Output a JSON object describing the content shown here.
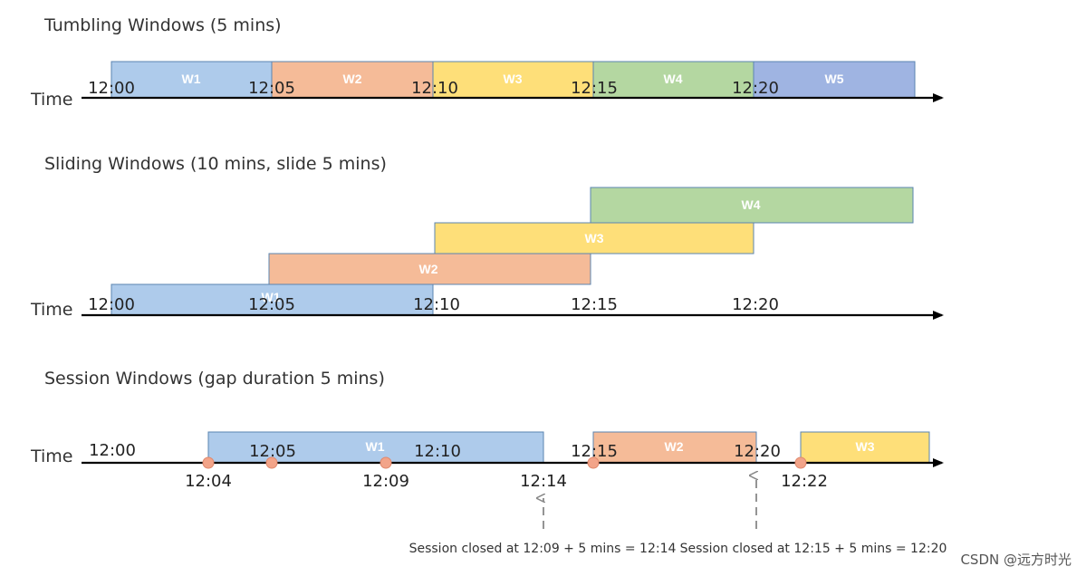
{
  "colors": {
    "blue": "#aecbeb",
    "orange": "#f5bb98",
    "yellow": "#fedf79",
    "green": "#b4d7a1",
    "darkblue": "#9fb4e2",
    "border": "#5b84b1",
    "event": "#f2a489"
  },
  "tumbling": {
    "title": "Tumbling Windows (5 mins)",
    "time_label": "Time",
    "ticks": [
      "12:00",
      "12:05",
      "12:10",
      "12:15",
      "12:20"
    ],
    "windows": [
      {
        "label": "W1",
        "color": "blue"
      },
      {
        "label": "W2",
        "color": "orange"
      },
      {
        "label": "W3",
        "color": "yellow"
      },
      {
        "label": "W4",
        "color": "green"
      },
      {
        "label": "W5",
        "color": "darkblue"
      }
    ]
  },
  "sliding": {
    "title": "Sliding Windows (10 mins, slide 5 mins)",
    "time_label": "Time",
    "ticks": [
      "12:00",
      "12:05",
      "12:10",
      "12:15",
      "12:20"
    ],
    "windows": [
      {
        "label": "W1",
        "color": "blue"
      },
      {
        "label": "W2",
        "color": "orange"
      },
      {
        "label": "W3",
        "color": "yellow"
      },
      {
        "label": "W4",
        "color": "green"
      }
    ]
  },
  "session": {
    "title": "Session Windows (gap duration 5 mins)",
    "time_label": "Time",
    "ticks": [
      "12:00",
      "12:05",
      "12:10",
      "12:15",
      "12:20"
    ],
    "event_labels": [
      "12:04",
      "12:09",
      "12:14",
      "12:22"
    ],
    "windows": [
      {
        "label": "W1",
        "color": "blue"
      },
      {
        "label": "W2",
        "color": "orange"
      },
      {
        "label": "W3",
        "color": "yellow"
      }
    ],
    "notes": [
      "Session closed at 12:09 + 5 mins = 12:14",
      "Session closed at 12:15 + 5 mins = 12:20"
    ]
  },
  "watermark": "CSDN @远方时光"
}
